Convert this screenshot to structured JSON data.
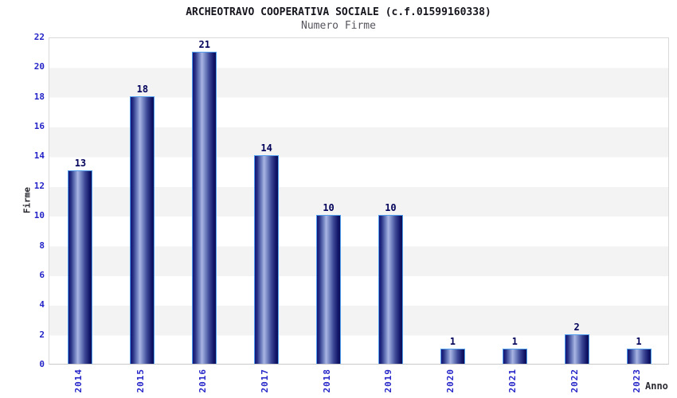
{
  "chart_data": {
    "type": "bar",
    "title": "ARCHEOTRAVO COOPERATIVA SOCIALE (c.f.01599160338)",
    "subtitle": "Numero Firme",
    "xlabel": "Anno",
    "ylabel": "Firme",
    "categories": [
      "2014",
      "2015",
      "2016",
      "2017",
      "2018",
      "2019",
      "2020",
      "2021",
      "2022",
      "2023"
    ],
    "values": [
      13,
      18,
      21,
      14,
      10,
      10,
      1,
      1,
      2,
      1
    ],
    "ylim": [
      0,
      22
    ],
    "ytick_step": 2,
    "grid": "alternating-horizontal-bands",
    "legend": "none",
    "colors": {
      "bar_dark": "#101578",
      "bar_highlight": "#a9b5e2",
      "bar_border": "#4f9fee",
      "tick_label": "#2424c8",
      "value_label": "#00005a",
      "band_gray": "#f3f3f3",
      "plot_border": "#d9d9d9",
      "title": "#15151e",
      "subtitle": "#55555e"
    }
  }
}
